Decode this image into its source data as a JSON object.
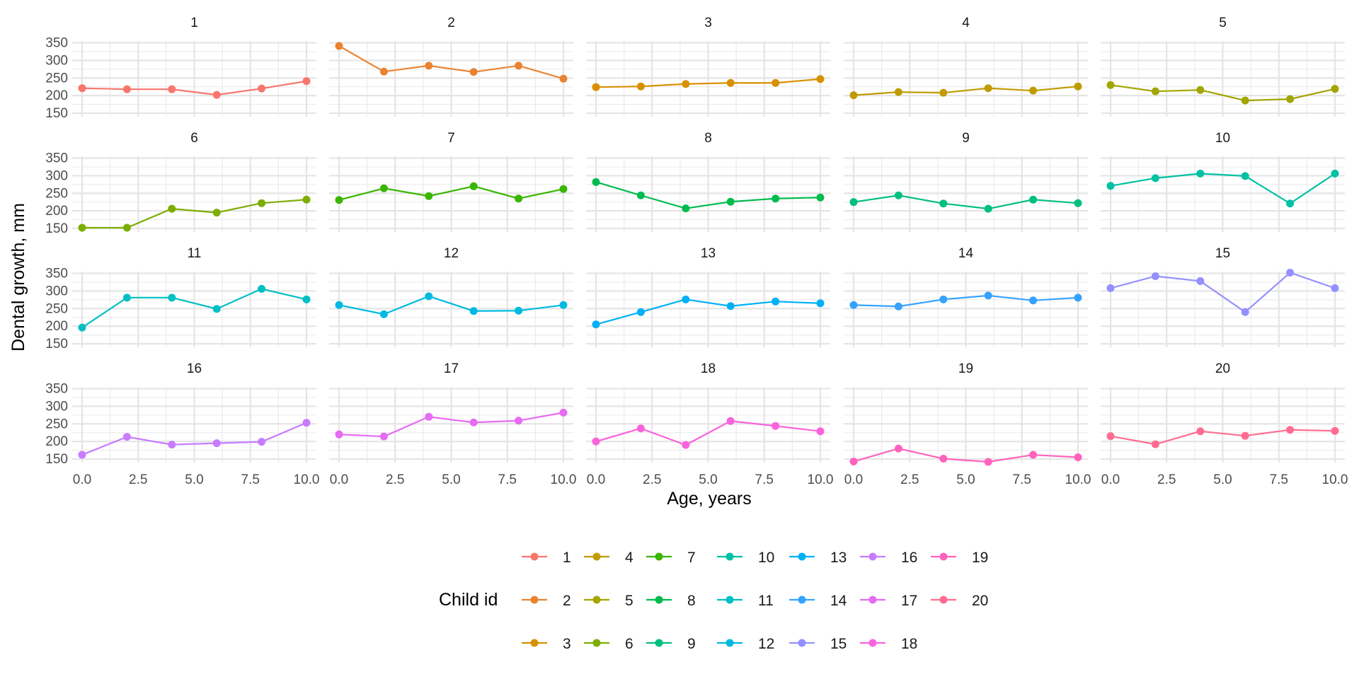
{
  "chart_data": {
    "type": "line",
    "facet_by": "Child id",
    "layout": {
      "rows": 4,
      "cols": 5
    },
    "xlabel": "Age, years",
    "ylabel": "Dental growth, mm",
    "xlim": [
      0,
      10
    ],
    "ylim": [
      140,
      355
    ],
    "x_ticks": [
      0,
      2.5,
      5,
      7.5,
      10
    ],
    "x_tick_labels": [
      "0.0",
      "2.5",
      "5.0",
      "7.5",
      "10.0"
    ],
    "y_ticks": [
      150,
      200,
      250,
      300,
      350
    ],
    "y_tick_labels": [
      "150",
      "200",
      "250",
      "300",
      "350"
    ],
    "grid": true,
    "legend": {
      "title": "Child id",
      "position": "bottom",
      "rows": 3
    },
    "x": [
      0,
      2,
      4,
      6,
      8,
      10
    ],
    "series": [
      {
        "name": "1",
        "color": "#F8766D",
        "values": [
          221,
          218,
          218,
          202,
          220,
          241
        ]
      },
      {
        "name": "2",
        "color": "#EA8331",
        "values": [
          341,
          268,
          285,
          267,
          285,
          248
        ]
      },
      {
        "name": "3",
        "color": "#D89000",
        "values": [
          224,
          226,
          233,
          236,
          236,
          247
        ]
      },
      {
        "name": "4",
        "color": "#C09B00",
        "values": [
          201,
          210,
          208,
          221,
          214,
          226
        ]
      },
      {
        "name": "5",
        "color": "#A3A500",
        "values": [
          230,
          212,
          216,
          186,
          190,
          219
        ]
      },
      {
        "name": "6",
        "color": "#7CAE00",
        "values": [
          152,
          152,
          206,
          195,
          222,
          232
        ]
      },
      {
        "name": "7",
        "color": "#39B600",
        "values": [
          231,
          264,
          242,
          270,
          235,
          262
        ]
      },
      {
        "name": "8",
        "color": "#00BB4E",
        "values": [
          282,
          244,
          207,
          226,
          235,
          238
        ]
      },
      {
        "name": "9",
        "color": "#00BF7D",
        "values": [
          225,
          244,
          221,
          206,
          232,
          222
        ]
      },
      {
        "name": "10",
        "color": "#00C1A3",
        "values": [
          271,
          293,
          306,
          299,
          221,
          306
        ]
      },
      {
        "name": "11",
        "color": "#00BFC4",
        "values": [
          196,
          281,
          281,
          249,
          306,
          276
        ]
      },
      {
        "name": "12",
        "color": "#00BAE0",
        "values": [
          260,
          234,
          285,
          243,
          244,
          260
        ]
      },
      {
        "name": "13",
        "color": "#00B0F6",
        "values": [
          205,
          240,
          276,
          257,
          270,
          265
        ]
      },
      {
        "name": "14",
        "color": "#35A2FF",
        "values": [
          260,
          256,
          276,
          287,
          273,
          281
        ]
      },
      {
        "name": "15",
        "color": "#9590FF",
        "values": [
          308,
          342,
          328,
          240,
          352,
          308
        ]
      },
      {
        "name": "16",
        "color": "#C77CFF",
        "values": [
          162,
          213,
          191,
          195,
          199,
          253
        ]
      },
      {
        "name": "17",
        "color": "#E76BF3",
        "values": [
          220,
          214,
          270,
          254,
          259,
          282
        ]
      },
      {
        "name": "18",
        "color": "#FA62DB",
        "values": [
          200,
          237,
          190,
          258,
          244,
          229
        ]
      },
      {
        "name": "19",
        "color": "#FF62BC",
        "values": [
          143,
          180,
          151,
          142,
          162,
          155
        ]
      },
      {
        "name": "20",
        "color": "#FF6C91",
        "values": [
          215,
          192,
          229,
          216,
          233,
          230
        ]
      }
    ]
  }
}
